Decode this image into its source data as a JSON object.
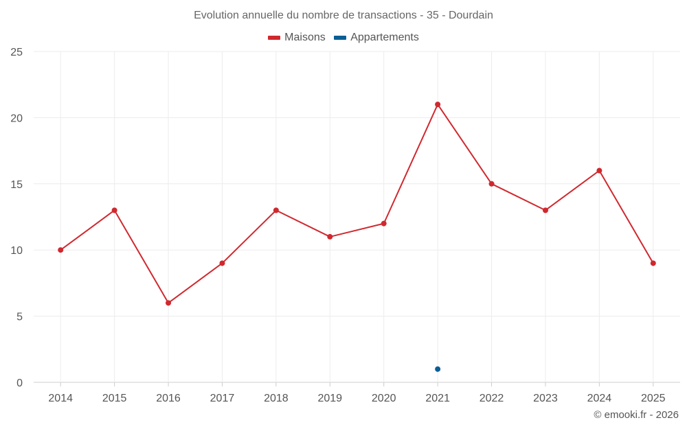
{
  "chart_data": {
    "type": "line",
    "title": "Evolution annuelle du nombre de transactions - 35 - Dourdain",
    "categories": [
      "2014",
      "2015",
      "2016",
      "2017",
      "2018",
      "2019",
      "2020",
      "2021",
      "2022",
      "2023",
      "2024",
      "2025"
    ],
    "series": [
      {
        "name": "Maisons",
        "color": "#d0282e",
        "values": [
          10,
          13,
          6,
          9,
          13,
          11,
          12,
          21,
          15,
          13,
          16,
          9
        ]
      },
      {
        "name": "Appartements",
        "color": "#0b5e95",
        "values": [
          null,
          null,
          null,
          null,
          null,
          null,
          null,
          1,
          null,
          null,
          null,
          null
        ]
      }
    ],
    "ylim": [
      0,
      25
    ],
    "yticks": [
      0,
      5,
      10,
      15,
      20,
      25
    ],
    "xlabel": "",
    "ylabel": "",
    "grid": true,
    "legend_position": "top-center"
  },
  "credit": "© emooki.fr - 2026"
}
